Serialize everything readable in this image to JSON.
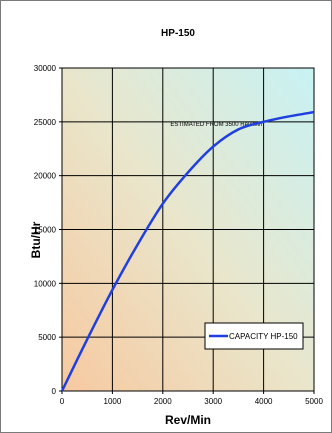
{
  "chart_data": {
    "type": "line",
    "title": "HP-150",
    "xlabel": "Rev/Min",
    "ylabel": "Btu/Hr",
    "xlim": [
      0,
      5000
    ],
    "ylim": [
      0,
      30000
    ],
    "x_ticks": [
      0,
      1000,
      2000,
      3000,
      4000,
      5000
    ],
    "y_ticks": [
      0,
      5000,
      10000,
      15000,
      20000,
      25000,
      30000
    ],
    "x_tick_labels": [
      "0",
      "1000",
      "2000",
      "3000",
      "4000",
      "5000"
    ],
    "y_tick_labels": [
      "0",
      "5000",
      "10000",
      "15000",
      "20000",
      "25000",
      "30000"
    ],
    "grid": true,
    "legend_position": "bottom-right",
    "annotation": "ESTIMATED FROM 3500 Rev/Min",
    "annotation_at": {
      "x": 2150,
      "y": 24600
    },
    "series": [
      {
        "name": "CAPACITY HP-150",
        "color": "#1f3fe0",
        "x": [
          0,
          500,
          1000,
          1500,
          2000,
          2500,
          3000,
          3500,
          4000,
          4500,
          5000
        ],
        "y": [
          0,
          4800,
          9400,
          13600,
          17400,
          20300,
          22700,
          24300,
          25000,
          25500,
          25900
        ]
      }
    ]
  }
}
